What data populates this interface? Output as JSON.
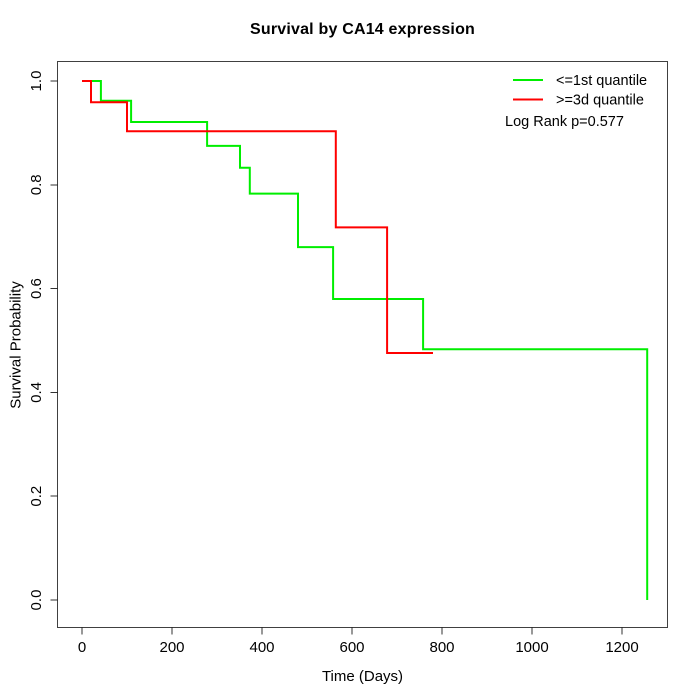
{
  "title": "Survival by CA14 expression",
  "annotation": "Log Rank p=0.577",
  "legend": [
    {
      "label": "<=1st quantile",
      "color": "#00ee00"
    },
    {
      "label": ">=3d quantile",
      "color": "#ff0000"
    }
  ],
  "chart_data": {
    "type": "line",
    "subtype": "kaplan-meier-step",
    "title": "Survival by CA14 expression",
    "xlabel": "Time (Days)",
    "ylabel": "Survival Probability",
    "xlim": [
      -55,
      1300
    ],
    "ylim": [
      0,
      1
    ],
    "grid": false,
    "legend_position": "top-right",
    "annotation": "Log Rank p=0.577",
    "x_ticks": [
      0,
      200,
      400,
      600,
      800,
      1000,
      1200
    ],
    "x_tick_labels": [
      "0",
      "200",
      "400",
      "600",
      "800",
      "1000",
      "1200"
    ],
    "y_ticks": [
      0.0,
      0.2,
      0.4,
      0.6,
      0.8,
      1.0
    ],
    "y_tick_labels": [
      "0.0",
      "0.2",
      "0.4",
      "0.6",
      "0.8",
      "1.0"
    ],
    "series": [
      {
        "name": "<=1st quantile",
        "color": "#00ee00",
        "points": [
          [
            0,
            1.0
          ],
          [
            42,
            0.962
          ],
          [
            109,
            0.921
          ],
          [
            278,
            0.875
          ],
          [
            351,
            0.833
          ],
          [
            373,
            0.783
          ],
          [
            480,
            0.68
          ],
          [
            558,
            0.58
          ],
          [
            758,
            0.483
          ],
          [
            1256,
            0.0
          ]
        ]
      },
      {
        "name": ">=3d quantile",
        "color": "#ff0000",
        "points": [
          [
            0,
            1.0
          ],
          [
            20,
            0.959
          ],
          [
            100,
            0.903
          ],
          [
            564,
            0.718
          ],
          [
            678,
            0.476
          ],
          [
            780,
            0.476
          ]
        ]
      }
    ]
  }
}
